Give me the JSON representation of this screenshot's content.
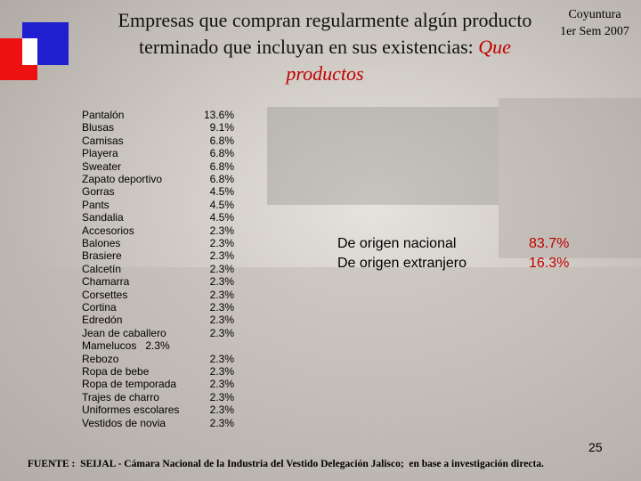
{
  "header": {
    "title": "Empresas que compran regularmente algún producto terminado que incluyan en sus existencias:",
    "title_highlight": "Que productos",
    "period_line1": "Coyuntura",
    "period_line2": "1er Sem 2007"
  },
  "products": {
    "names": [
      "Pantalón",
      "Blusas",
      "Camisas",
      "Playera",
      "Sweater",
      "Zapato deportivo",
      "Gorras",
      "Pants",
      "Sandalia",
      "Accesorios",
      "Balones",
      "Brasiere",
      "Calcetín",
      "Chamarra",
      "Corsettes",
      "Cortina",
      "Edredón",
      "Jean de caballero",
      "Mamelucos   2.3%",
      "Rebozo",
      "Ropa de bebe",
      "Ropa de temporada",
      "Trajes de charro",
      "Uniformes escolares",
      "Vestidos de novia"
    ],
    "percents": [
      "13.6%",
      "9.1%",
      "6.8%",
      "6.8%",
      "6.8%",
      "6.8%",
      "4.5%",
      "4.5%",
      "4.5%",
      "2.3%",
      "2.3%",
      "2.3%",
      "2.3%",
      "2.3%",
      "2.3%",
      "2.3%",
      "2.3%",
      "2.3%",
      null,
      "2.3%",
      "2.3%",
      "2.3%",
      "2.3%",
      "2.3%",
      "2.3%"
    ]
  },
  "origin": {
    "rows": [
      {
        "label": "De origen nacional",
        "percent": "83.7%"
      },
      {
        "label": "De origen extranjero",
        "percent": "16.3%"
      }
    ]
  },
  "footer": {
    "page": "25",
    "source": "FUENTE :  SEIJAL - Cámara Nacional de la Industria del Vestido Delegación Jalisco;  en base a investigación directa."
  }
}
